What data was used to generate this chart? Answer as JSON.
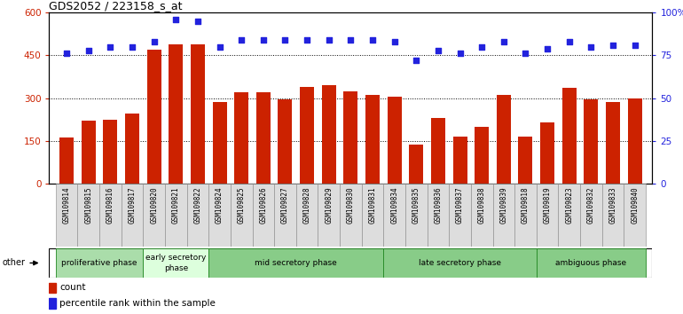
{
  "title": "GDS2052 / 223158_s_at",
  "samples": [
    "GSM109814",
    "GSM109815",
    "GSM109816",
    "GSM109817",
    "GSM109820",
    "GSM109821",
    "GSM109822",
    "GSM109824",
    "GSM109825",
    "GSM109826",
    "GSM109827",
    "GSM109828",
    "GSM109829",
    "GSM109830",
    "GSM109831",
    "GSM109834",
    "GSM109835",
    "GSM109836",
    "GSM109837",
    "GSM109838",
    "GSM109839",
    "GSM109818",
    "GSM109819",
    "GSM109823",
    "GSM109832",
    "GSM109833",
    "GSM109840"
  ],
  "counts": [
    163,
    220,
    225,
    245,
    470,
    490,
    490,
    285,
    320,
    320,
    295,
    340,
    345,
    325,
    310,
    305,
    137,
    230,
    165,
    200,
    310,
    165,
    215,
    335,
    295,
    285,
    300
  ],
  "percentiles": [
    76,
    78,
    80,
    80,
    83,
    96,
    95,
    80,
    84,
    84,
    84,
    84,
    84,
    84,
    84,
    83,
    72,
    78,
    76,
    80,
    83,
    76,
    79,
    83,
    80,
    81,
    81
  ],
  "phases": [
    {
      "name": "proliferative phase",
      "start": 0,
      "end": 4,
      "color": "#aaddaa"
    },
    {
      "name": "early secretory\nphase",
      "start": 4,
      "end": 7,
      "color": "#ddffdd"
    },
    {
      "name": "mid secretory phase",
      "start": 7,
      "end": 15,
      "color": "#88cc88"
    },
    {
      "name": "late secretory phase",
      "start": 15,
      "end": 22,
      "color": "#88cc88"
    },
    {
      "name": "ambiguous phase",
      "start": 22,
      "end": 27,
      "color": "#88cc88"
    }
  ],
  "bar_color": "#cc2200",
  "dot_color": "#2222dd",
  "ylim_left": [
    0,
    600
  ],
  "ylim_right": [
    0,
    100
  ],
  "yticks_left": [
    0,
    150,
    300,
    450,
    600
  ],
  "yticks_right": [
    0,
    25,
    50,
    75,
    100
  ],
  "gridline_vals": [
    150,
    300,
    450
  ],
  "background_color": "#ffffff",
  "xlabel_bg": "#dddddd",
  "phase_border_color": "#228822"
}
